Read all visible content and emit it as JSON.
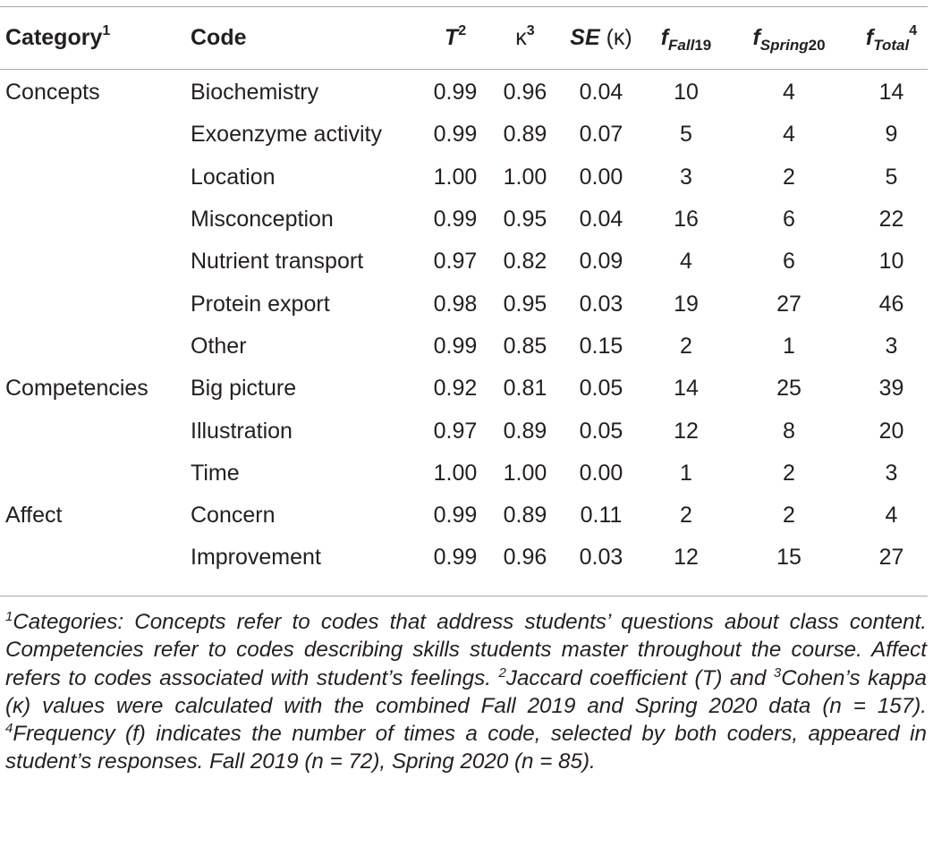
{
  "table": {
    "headers": {
      "category": "Category",
      "category_sup": "1",
      "code": "Code",
      "t": "T",
      "t_sup": "2",
      "kappa": "κ",
      "kappa_sup": "3",
      "se": "SE",
      "se_suffix": "(κ)",
      "f": "f",
      "fall_sub": "Fall",
      "fall_num": "19",
      "spring_sub": "Spring",
      "spring_num": "20",
      "total_sub": "Total",
      "total_sup": "4"
    },
    "rows": [
      {
        "category": "Concepts",
        "code": "Biochemistry",
        "t": "0.99",
        "kappa": "0.96",
        "se": "0.04",
        "fall": "10",
        "spring": "4",
        "total": "14"
      },
      {
        "category": "",
        "code": "Exoenzyme activity",
        "t": "0.99",
        "kappa": "0.89",
        "se": "0.07",
        "fall": "5",
        "spring": "4",
        "total": "9"
      },
      {
        "category": "",
        "code": "Location",
        "t": "1.00",
        "kappa": "1.00",
        "se": "0.00",
        "fall": "3",
        "spring": "2",
        "total": "5"
      },
      {
        "category": "",
        "code": "Misconception",
        "t": "0.99",
        "kappa": "0.95",
        "se": "0.04",
        "fall": "16",
        "spring": "6",
        "total": "22"
      },
      {
        "category": "",
        "code": "Nutrient transport",
        "t": "0.97",
        "kappa": "0.82",
        "se": "0.09",
        "fall": "4",
        "spring": "6",
        "total": "10"
      },
      {
        "category": "",
        "code": "Protein export",
        "t": "0.98",
        "kappa": "0.95",
        "se": "0.03",
        "fall": "19",
        "spring": "27",
        "total": "46"
      },
      {
        "category": "",
        "code": "Other",
        "t": "0.99",
        "kappa": "0.85",
        "se": "0.15",
        "fall": "2",
        "spring": "1",
        "total": "3"
      },
      {
        "category": "Competencies",
        "code": "Big picture",
        "t": "0.92",
        "kappa": "0.81",
        "se": "0.05",
        "fall": "14",
        "spring": "25",
        "total": "39"
      },
      {
        "category": "",
        "code": "Illustration",
        "t": "0.97",
        "kappa": "0.89",
        "se": "0.05",
        "fall": "12",
        "spring": "8",
        "total": "20"
      },
      {
        "category": "",
        "code": "Time",
        "t": "1.00",
        "kappa": "1.00",
        "se": "0.00",
        "fall": "1",
        "spring": "2",
        "total": "3"
      },
      {
        "category": "Affect",
        "code": "Concern",
        "t": "0.99",
        "kappa": "0.89",
        "se": "0.11",
        "fall": "2",
        "spring": "2",
        "total": "4"
      },
      {
        "category": "",
        "code": "Improvement",
        "t": "0.99",
        "kappa": "0.96",
        "se": "0.03",
        "fall": "12",
        "spring": "15",
        "total": "27"
      }
    ]
  },
  "footnote": {
    "sup1": "1",
    "text1": "Categories: Concepts refer to codes that address students’ questions about class content. Competencies refer to codes describing skills students master throughout the course. Affect refers to codes associated with student’s feelings. ",
    "sup2": "2",
    "text2": "Jaccard coefficient (T) and ",
    "sup3": "3",
    "text3": "Cohen’s kappa (κ) values were calculated with the combined Fall 2019 and Spring 2020 data (n = 157). ",
    "sup4": "4",
    "text4": "Frequency (f) indicates the number of times a code, selected by both coders, appeared in student’s responses. Fall 2019 (n = 72), Spring 2020 (n = 85)."
  }
}
